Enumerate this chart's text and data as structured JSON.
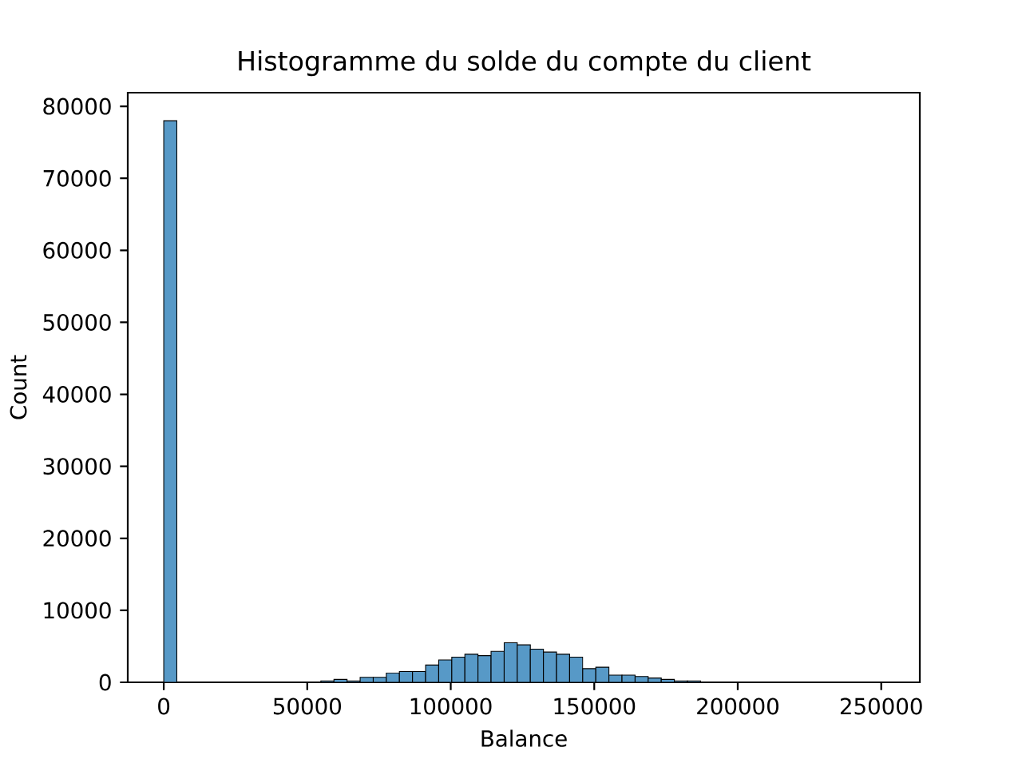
{
  "chart_data": {
    "type": "histogram",
    "title": "Histogramme du solde du compte du client",
    "xlabel": "Balance",
    "ylabel": "Count",
    "color": "#5799c7",
    "bins": [
      0,
      4562,
      9124,
      13686,
      18248,
      22810,
      27372,
      31934,
      36496,
      41058,
      45620,
      50182,
      54744,
      59306,
      63868,
      68430,
      72992,
      77554,
      82116,
      86678,
      91240,
      95802,
      100364,
      104926,
      109488,
      114050,
      118612,
      123174,
      127736,
      132298,
      136860,
      141422,
      145984,
      150546,
      155108,
      159670,
      164232,
      168794,
      173356,
      177918,
      182480,
      187042
    ],
    "values": [
      78000,
      0,
      0,
      0,
      0,
      0,
      0,
      0,
      0,
      0,
      0,
      0,
      200,
      400,
      200,
      700,
      700,
      1300,
      1500,
      1500,
      2400,
      3100,
      3500,
      3900,
      3700,
      4300,
      5500,
      5200,
      4600,
      4200,
      3900,
      3500,
      1900,
      2100,
      1000,
      1000,
      800,
      600,
      400,
      200,
      200
    ],
    "xlim": [
      -12545,
      263443
    ],
    "ylim": [
      0,
      81900
    ],
    "xticks": [
      0,
      50000,
      100000,
      150000,
      200000,
      250000
    ],
    "yticks": [
      0,
      10000,
      20000,
      30000,
      40000,
      50000,
      60000,
      70000,
      80000
    ]
  }
}
